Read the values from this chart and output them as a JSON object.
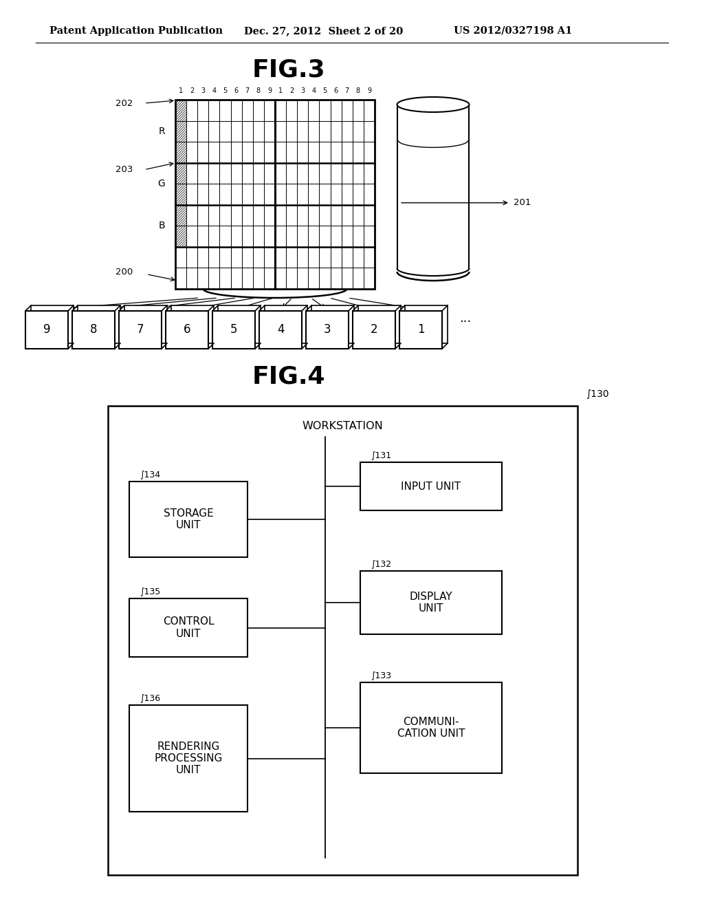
{
  "header_left": "Patent Application Publication",
  "header_mid": "Dec. 27, 2012  Sheet 2 of 20",
  "header_right": "US 2012/0327198 A1",
  "fig3_title": "FIG.3",
  "fig4_title": "FIG.4",
  "bg_color": "#ffffff",
  "line_color": "#000000",
  "fig3": {
    "col_numbers": [
      "1",
      "2",
      "3",
      "4",
      "5",
      "6",
      "7",
      "8",
      "9",
      "1",
      "2",
      "3",
      "4",
      "5",
      "6",
      "7",
      "8",
      "9"
    ],
    "box_labels": [
      "9",
      "8",
      "7",
      "6",
      "5",
      "4",
      "3",
      "2",
      "1"
    ]
  },
  "fig4": {
    "label_130": "130",
    "label_workstation": "WORKSTATION"
  }
}
